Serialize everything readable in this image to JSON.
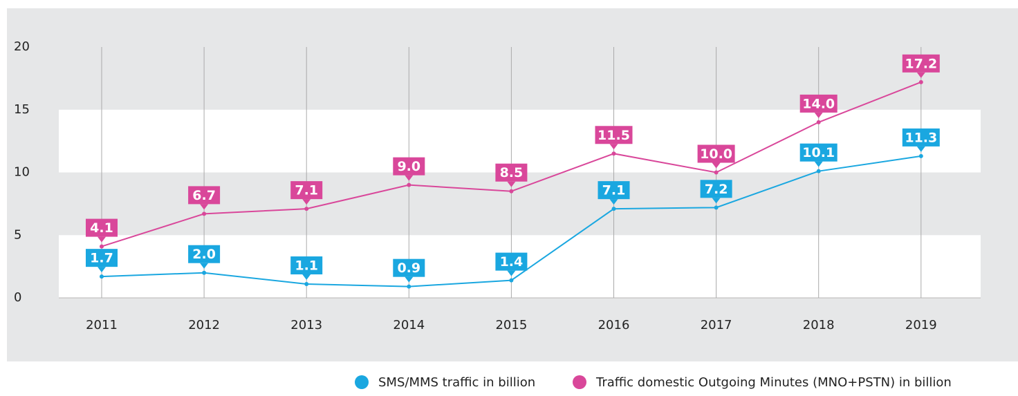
{
  "chart_data": {
    "type": "line",
    "categories": [
      "2011",
      "2012",
      "2013",
      "2014",
      "2015",
      "2016",
      "2017",
      "2018",
      "2019"
    ],
    "series": [
      {
        "name": "SMS/MMS traffic in billion",
        "color": "#1aa7e0",
        "values": [
          1.7,
          2.0,
          1.1,
          0.9,
          1.4,
          7.1,
          7.2,
          10.1,
          11.3
        ],
        "value_labels": [
          "1.7",
          "2.0",
          "1.1",
          "0.9",
          "1.4",
          "7.1",
          "7.2",
          "10.1",
          "11.3"
        ]
      },
      {
        "name": "Traffic domestic Outgoing Minutes (MNO+PSTN) in billion",
        "color": "#d9479a",
        "values": [
          4.1,
          6.7,
          7.1,
          9.0,
          8.5,
          11.5,
          10.0,
          14.0,
          17.2
        ],
        "value_labels": [
          "4.1",
          "6.7",
          "7.1",
          "9.0",
          "8.5",
          "11.5",
          "10.0",
          "14.0",
          "17.2"
        ]
      }
    ],
    "ylim": [
      0,
      20
    ],
    "yticks": [
      0,
      5,
      10,
      15,
      20
    ],
    "grid": true,
    "legend": "bottom"
  }
}
